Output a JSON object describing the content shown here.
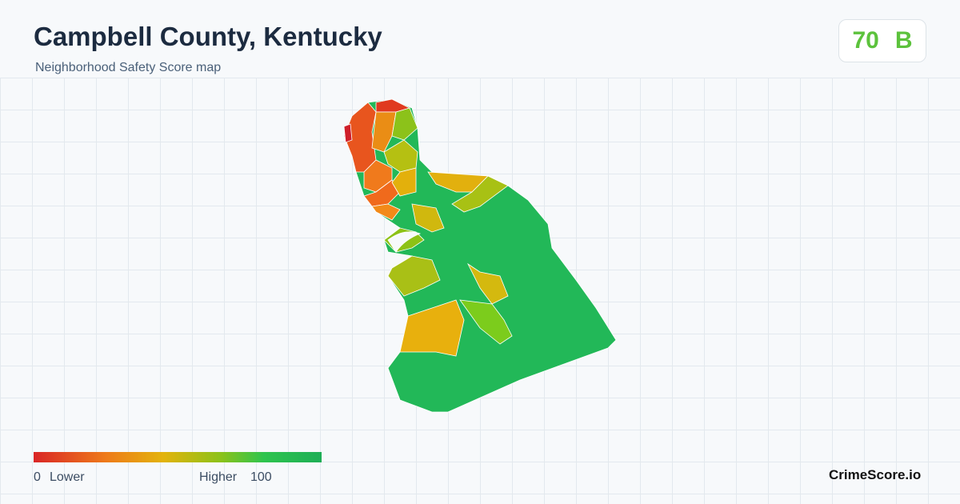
{
  "header": {
    "title": "Campbell County, Kentucky",
    "subtitle": "Neighborhood Safety Score map"
  },
  "score": {
    "value": 70,
    "grade": "B"
  },
  "legend": {
    "min": 0,
    "min_label": "Lower",
    "max_label": "Higher",
    "max": 100
  },
  "brand": "CrimeScore.io"
}
